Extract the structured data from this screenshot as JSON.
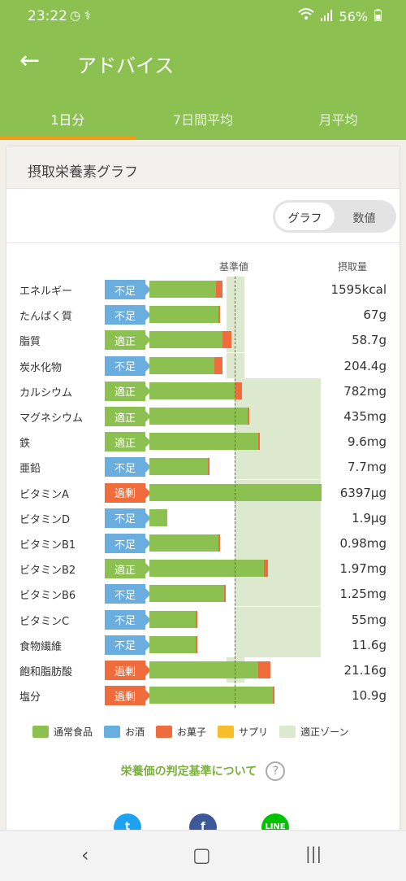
{
  "status": {
    "time": "23:22",
    "icons": "◷ ⚕",
    "battery": "56%",
    "signal": "📶"
  },
  "appbar": {
    "back": "←",
    "title": "アドバイス"
  },
  "tabs": [
    {
      "label": "1日分",
      "active": true
    },
    {
      "label": "7日間平均",
      "active": false
    },
    {
      "label": "月平均",
      "active": false
    }
  ],
  "card": {
    "title": "摂取栄養素グラフ"
  },
  "toggle": {
    "graph": "グラフ",
    "numbers": "数値",
    "selected": "グラフ"
  },
  "headers": {
    "standard": "基準値",
    "intake": "摂取量"
  },
  "nutrients": [
    {
      "name": "エネルギー",
      "status": "不足",
      "food": 0.77,
      "sweets": 0.08,
      "zone": "narrow",
      "value": "1595kcal"
    },
    {
      "name": "たんぱく質",
      "status": "不足",
      "food": 0.8,
      "sweets": 0.02,
      "zone": "narrow",
      "value": "67g"
    },
    {
      "name": "脂質",
      "status": "適正",
      "food": 0.85,
      "sweets": 0.1,
      "zone": "narrow",
      "value": "58.7g"
    },
    {
      "name": "炭水化物",
      "status": "不足",
      "food": 0.75,
      "sweets": 0.1,
      "zone": "narrow",
      "value": "204.4g"
    },
    {
      "name": "カルシウム",
      "status": "適正",
      "food": 1.0,
      "sweets": 0.08,
      "zone": "wide",
      "value": "782mg"
    },
    {
      "name": "マグネシウム",
      "status": "適正",
      "food": 1.14,
      "sweets": 0.02,
      "zone": "wide",
      "value": "435mg"
    },
    {
      "name": "鉄",
      "status": "適正",
      "food": 1.26,
      "sweets": 0.02,
      "zone": "wide",
      "value": "9.6mg"
    },
    {
      "name": "亜鉛",
      "status": "不足",
      "food": 0.68,
      "sweets": 0.02,
      "zone": "wide",
      "value": "7.7mg"
    },
    {
      "name": "ビタミンA",
      "status": "過剰",
      "food": 2.0,
      "sweets": 0.0,
      "zone": "wide",
      "value": "6397μg"
    },
    {
      "name": "ビタミンD",
      "status": "不足",
      "food": 0.21,
      "sweets": 0.0,
      "zone": "wide",
      "value": "1.9μg"
    },
    {
      "name": "ビタミンB1",
      "status": "不足",
      "food": 0.8,
      "sweets": 0.02,
      "zone": "wide",
      "value": "0.98mg"
    },
    {
      "name": "ビタミンB2",
      "status": "適正",
      "food": 1.33,
      "sweets": 0.05,
      "zone": "wide",
      "value": "1.97mg"
    },
    {
      "name": "ビタミンB6",
      "status": "不足",
      "food": 0.87,
      "sweets": 0.02,
      "zone": "wide",
      "value": "1.25mg"
    },
    {
      "name": "ビタミンC",
      "status": "不足",
      "food": 0.54,
      "sweets": 0.01,
      "zone": "wide",
      "value": "55mg"
    },
    {
      "name": "食物繊維",
      "status": "不足",
      "food": 0.54,
      "sweets": 0.01,
      "zone": "wide",
      "value": "11.6g"
    },
    {
      "name": "飽和脂肪酸",
      "status": "過剰",
      "food": 1.26,
      "sweets": 0.15,
      "zone": "narrow",
      "value": "21.16g"
    },
    {
      "name": "塩分",
      "status": "過剰",
      "food": 1.43,
      "sweets": 0.02,
      "zone": "none",
      "value": "10.9g"
    }
  ],
  "legend": [
    {
      "label": "通常食品",
      "color": "#8cc152"
    },
    {
      "label": "お酒",
      "color": "#6aaee0"
    },
    {
      "label": "お菓子",
      "color": "#ef6c3d"
    },
    {
      "label": "サプリ",
      "color": "#f7bd2b"
    },
    {
      "label": "適正ゾーン",
      "color": "#dde9ce"
    }
  ],
  "link": {
    "text": "栄養価の判定基準について",
    "help": "?"
  },
  "shares": {
    "twitter": "t",
    "facebook": "f",
    "line": "LINE"
  },
  "navbar": {
    "back": "‹",
    "home": "▢",
    "recent": "|||"
  }
}
